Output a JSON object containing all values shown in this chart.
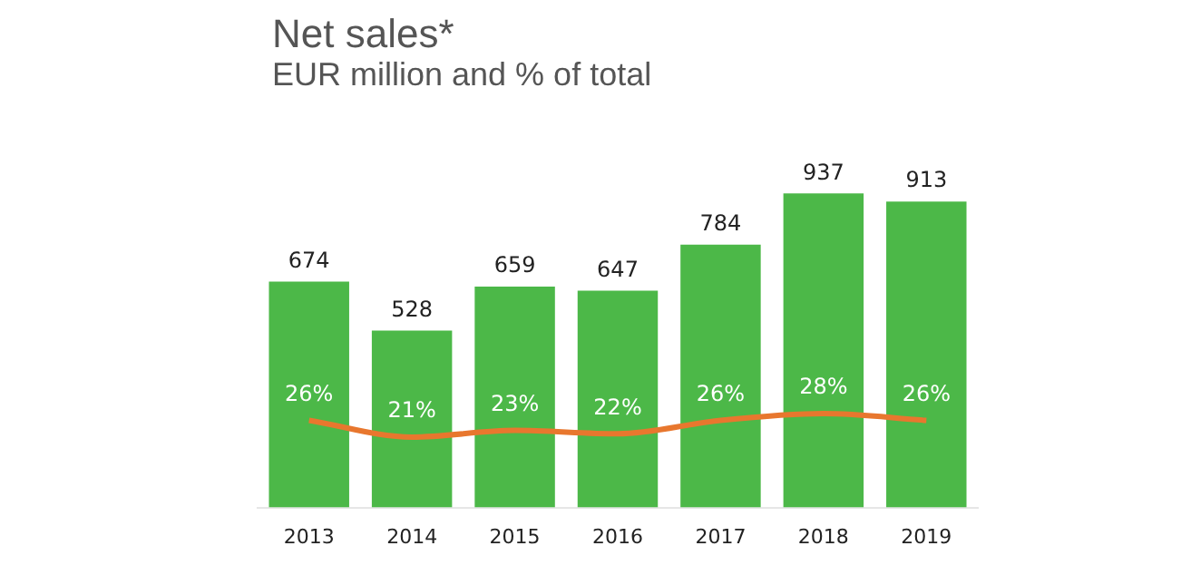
{
  "chart_data": {
    "type": "bar",
    "title": "Net sales*",
    "subtitle": "EUR million and % of total",
    "categories": [
      "2013",
      "2014",
      "2015",
      "2016",
      "2017",
      "2018",
      "2019"
    ],
    "series": [
      {
        "color": "#4cb848",
        "values": [
          674,
          528,
          659,
          647,
          784,
          937,
          913
        ]
      },
      {
        "type": "line",
        "axis": "y2",
        "color": "#e8772e",
        "values": [
          26,
          21,
          23,
          22,
          26,
          28,
          26
        ],
        "value_labels": [
          "26%",
          "21%",
          "23%",
          "22%",
          "26%",
          "28%",
          "26%"
        ]
      }
    ],
    "data_labels": true,
    "grid": false,
    "legend": false,
    "marker": "none",
    "line_style": "solid",
    "tick_labels": "x"
  }
}
